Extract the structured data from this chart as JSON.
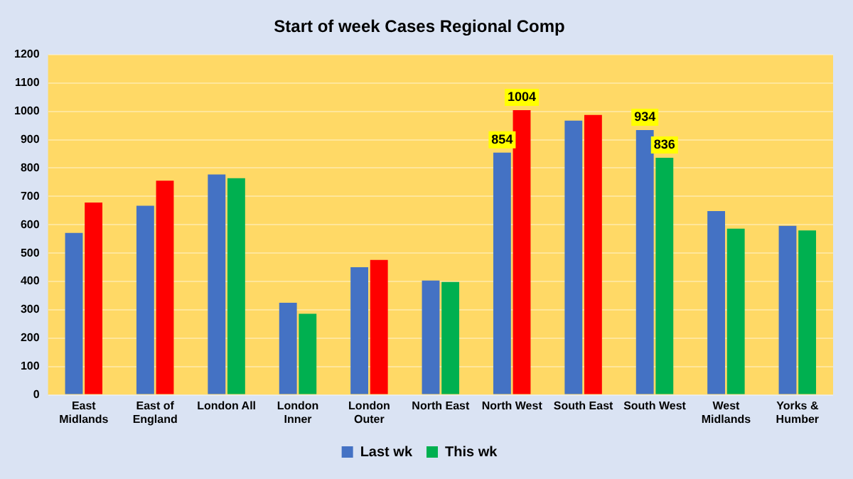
{
  "chart_data": {
    "type": "bar",
    "title": "Start of week Cases Regional Comp",
    "categories": [
      "East Midlands",
      "East of England",
      "London All",
      "London Inner",
      "London Outer",
      "North East",
      "North West",
      "South East",
      "South West",
      "West Midlands",
      "Yorks & Humber"
    ],
    "series": [
      {
        "name": "Last wk",
        "color": "#4472c4",
        "values": [
          571,
          667,
          777,
          325,
          450,
          403,
          854,
          967,
          934,
          648,
          596
        ],
        "value_labels": [
          null,
          null,
          null,
          null,
          null,
          null,
          "854",
          null,
          "934",
          null,
          null
        ]
      },
      {
        "name": "This wk",
        "color": "#00b050",
        "colors": [
          "#ff0000",
          "#ff0000",
          "#00b050",
          "#00b050",
          "#ff0000",
          "#00b050",
          "#ff0000",
          "#ff0000",
          "#00b050",
          "#00b050",
          "#00b050"
        ],
        "values": [
          678,
          755,
          764,
          286,
          476,
          398,
          1004,
          987,
          836,
          586,
          580
        ],
        "value_labels": [
          null,
          null,
          null,
          null,
          null,
          null,
          "1004",
          null,
          "836",
          null,
          null
        ]
      }
    ],
    "ylim": [
      0,
      1200
    ],
    "yticks": [
      0,
      100,
      200,
      300,
      400,
      500,
      600,
      700,
      800,
      900,
      1000,
      1100,
      1200
    ],
    "grid": "y",
    "legend": "bottom"
  }
}
